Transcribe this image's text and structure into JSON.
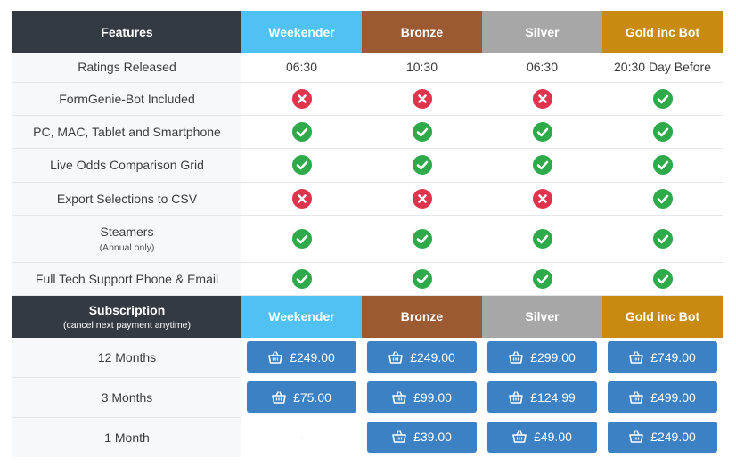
{
  "header": {
    "features": "Features",
    "plans": [
      "Weekender",
      "Bronze",
      "Silver",
      "Gold inc Bot"
    ]
  },
  "colors": {
    "features_header": "#343a42",
    "weekender": "#4fc1f3",
    "bronze": "#9b5a32",
    "silver": "#a7a7a7",
    "gold": "#c98a12",
    "check": "#2eaa4a",
    "cross": "#e0334c",
    "button": "#3b81c3"
  },
  "features": [
    {
      "label": "Ratings Released",
      "values": [
        "06:30",
        "10:30",
        "06:30",
        "20:30 Day Before"
      ]
    },
    {
      "label": "FormGenie-Bot Included",
      "values": [
        "no",
        "no",
        "no",
        "yes"
      ]
    },
    {
      "label": "PC, MAC, Tablet and Smartphone",
      "values": [
        "yes",
        "yes",
        "yes",
        "yes"
      ]
    },
    {
      "label": "Live Odds Comparison Grid",
      "values": [
        "yes",
        "yes",
        "yes",
        "yes"
      ]
    },
    {
      "label": "Export Selections to CSV",
      "values": [
        "no",
        "no",
        "no",
        "yes"
      ]
    },
    {
      "label": "Steamers",
      "note": "(Annual only)",
      "values": [
        "yes",
        "yes",
        "yes",
        "yes"
      ]
    },
    {
      "label": "Full Tech Support Phone & Email",
      "values": [
        "yes",
        "yes",
        "yes",
        "yes"
      ]
    }
  ],
  "subscription_header": {
    "title": "Subscription",
    "subtitle": "(cancel next payment anytime)",
    "plans": [
      "Weekender",
      "Bronze",
      "Silver",
      "Gold inc Bot"
    ]
  },
  "subscriptions": [
    {
      "label": "12 Months",
      "prices": [
        "£249.00",
        "£249.00",
        "£299.00",
        "£749.00"
      ]
    },
    {
      "label": "3 Months",
      "prices": [
        "£75.00",
        "£99.00",
        "£124.99",
        "£499.00"
      ]
    },
    {
      "label": "1 Month",
      "prices": [
        "-",
        "£39.00",
        "£49.00",
        "£249.00"
      ]
    }
  ]
}
